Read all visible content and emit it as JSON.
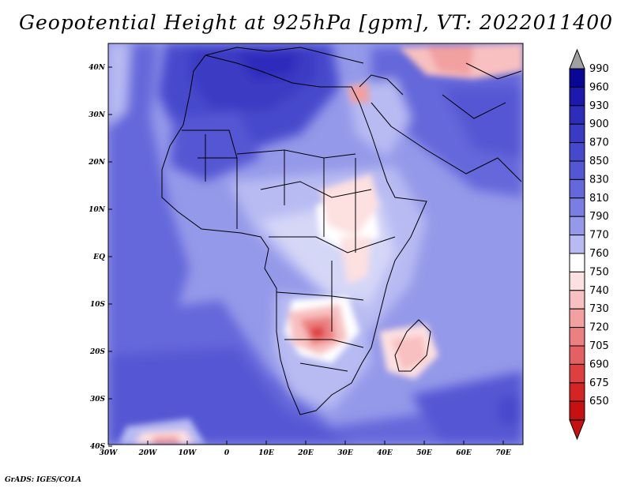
{
  "title": "Geopotential Height at 925hPa [gpm], VT: 2022011400",
  "credit": "GrADS: IGES/COLA",
  "map": {
    "region": "Africa",
    "lon_range": [
      -30,
      75
    ],
    "lat_range": [
      -40,
      45
    ],
    "x_ticks": [
      "30W",
      "20W",
      "10W",
      "0",
      "10E",
      "20E",
      "30E",
      "40E",
      "50E",
      "60E",
      "70E"
    ],
    "y_ticks": [
      "40N",
      "30N",
      "20N",
      "10N",
      "EQ",
      "10S",
      "20S",
      "30S",
      "40S"
    ]
  },
  "colorbar": {
    "levels": [
      "990",
      "960",
      "930",
      "900",
      "870",
      "850",
      "830",
      "810",
      "790",
      "770",
      "760",
      "750",
      "740",
      "730",
      "720",
      "705",
      "690",
      "675",
      "650"
    ],
    "colors": [
      "#0a0696",
      "#1e19ae",
      "#2e2cbb",
      "#3a3bc4",
      "#4649cc",
      "#5457d3",
      "#6568da",
      "#7a7ee2",
      "#9599e9",
      "#b8bbf2",
      "#ffffff",
      "#fde0e0",
      "#f8c0c0",
      "#f2a0a0",
      "#ec8080",
      "#e56060",
      "#de4040",
      "#d52424",
      "#c81010"
    ]
  }
}
